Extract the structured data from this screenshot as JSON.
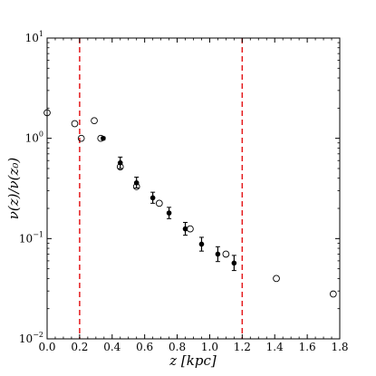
{
  "chart_data": {
    "type": "scatter",
    "xlabel": "z [kpc]",
    "ylabel": "ν(z)/ν(z₀)",
    "xlim": [
      0.0,
      1.8
    ],
    "ylim": [
      0.01,
      10
    ],
    "yscale": "log",
    "xticks": [
      "0.0",
      "0.2",
      "0.4",
      "0.6",
      "0.8",
      "1.0",
      "1.2",
      "1.4",
      "1.6",
      "1.8"
    ],
    "yticks": [
      {
        "value": 0.01,
        "base": "10",
        "exp": "−2"
      },
      {
        "value": 0.1,
        "base": "10",
        "exp": "−1"
      },
      {
        "value": 1,
        "base": "10",
        "exp": "0"
      },
      {
        "value": 10,
        "base": "10",
        "exp": "1"
      }
    ],
    "vlines": [
      {
        "x": 0.2,
        "color": "#e41a1c",
        "style": "dashed"
      },
      {
        "x": 1.2,
        "color": "#e41a1c",
        "style": "dashed"
      }
    ],
    "series": [
      {
        "marker": "open-circle",
        "points": [
          {
            "x": 0.0,
            "y": 1.8
          },
          {
            "x": 0.17,
            "y": 1.4
          },
          {
            "x": 0.21,
            "y": 1.0
          },
          {
            "x": 0.29,
            "y": 1.5
          },
          {
            "x": 0.33,
            "y": 1.0
          },
          {
            "x": 0.45,
            "y": 0.52
          },
          {
            "x": 0.55,
            "y": 0.33
          },
          {
            "x": 0.69,
            "y": 0.225
          },
          {
            "x": 0.88,
            "y": 0.125
          },
          {
            "x": 1.1,
            "y": 0.07
          },
          {
            "x": 1.41,
            "y": 0.04
          },
          {
            "x": 1.76,
            "y": 0.028
          }
        ]
      },
      {
        "marker": "filled-circle-errorbar",
        "points": [
          {
            "x": 0.345,
            "y": 1.0,
            "lo": 0.97,
            "hi": 1.03
          },
          {
            "x": 0.45,
            "y": 0.57,
            "lo": 0.5,
            "hi": 0.65
          },
          {
            "x": 0.55,
            "y": 0.36,
            "lo": 0.32,
            "hi": 0.41
          },
          {
            "x": 0.65,
            "y": 0.255,
            "lo": 0.225,
            "hi": 0.29
          },
          {
            "x": 0.75,
            "y": 0.18,
            "lo": 0.158,
            "hi": 0.205
          },
          {
            "x": 0.85,
            "y": 0.125,
            "lo": 0.108,
            "hi": 0.145
          },
          {
            "x": 0.95,
            "y": 0.088,
            "lo": 0.075,
            "hi": 0.103
          },
          {
            "x": 1.05,
            "y": 0.07,
            "lo": 0.059,
            "hi": 0.083
          },
          {
            "x": 1.15,
            "y": 0.057,
            "lo": 0.048,
            "hi": 0.068
          }
        ]
      }
    ]
  }
}
